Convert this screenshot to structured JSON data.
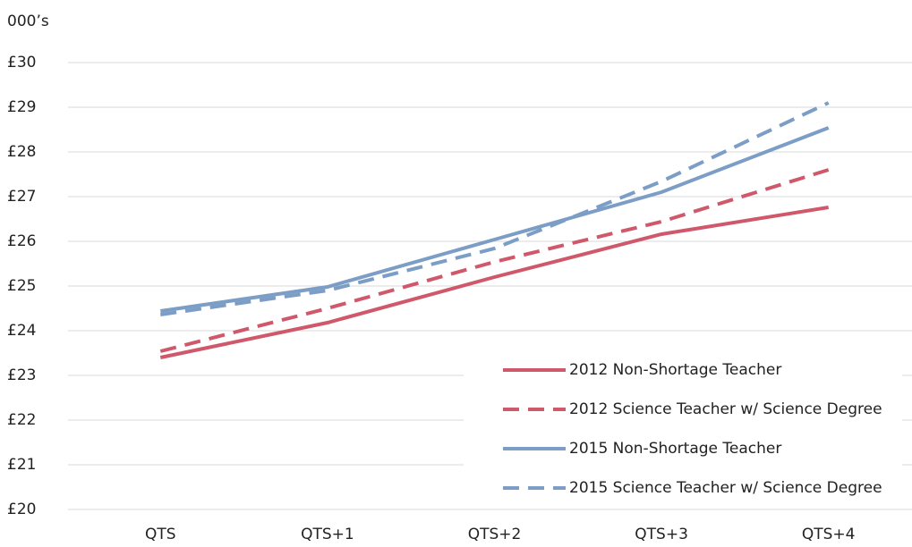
{
  "chart_data": {
    "type": "line",
    "y_axis_label": "000’s",
    "categories": [
      "QTS",
      "QTS+1",
      "QTS+2",
      "QTS+3",
      "QTS+4"
    ],
    "series": [
      {
        "name": "2012 Non-Shortage Teacher",
        "color": "#d0586b",
        "dashed": false,
        "values": [
          23.4,
          24.18,
          25.2,
          26.16,
          26.76
        ]
      },
      {
        "name": "2012 Science Teacher w/ Science Degree",
        "color": "#d0586b",
        "dashed": true,
        "values": [
          23.54,
          24.5,
          25.54,
          26.44,
          27.6
        ]
      },
      {
        "name": "2015 Non-Shortage Teacher",
        "color": "#7b9dc6",
        "dashed": false,
        "values": [
          24.44,
          24.98,
          26.04,
          27.1,
          28.54
        ]
      },
      {
        "name": "2015 Science Teacher w/ Science Degree",
        "color": "#7b9dc6",
        "dashed": true,
        "values": [
          24.36,
          24.9,
          25.84,
          27.34,
          29.1
        ]
      }
    ],
    "ylim": [
      20,
      30
    ],
    "yticks": [
      {
        "value": 20,
        "label": "£20"
      },
      {
        "value": 21,
        "label": "£21"
      },
      {
        "value": 22,
        "label": "£22"
      },
      {
        "value": 23,
        "label": "£23"
      },
      {
        "value": 24,
        "label": "£24"
      },
      {
        "value": 25,
        "label": "£25"
      },
      {
        "value": 26,
        "label": "£26"
      },
      {
        "value": 27,
        "label": "£27"
      },
      {
        "value": 28,
        "label": "£28"
      },
      {
        "value": 29,
        "label": "£29"
      },
      {
        "value": 30,
        "label": "£30"
      }
    ],
    "grid": true,
    "legend": "lower right"
  }
}
